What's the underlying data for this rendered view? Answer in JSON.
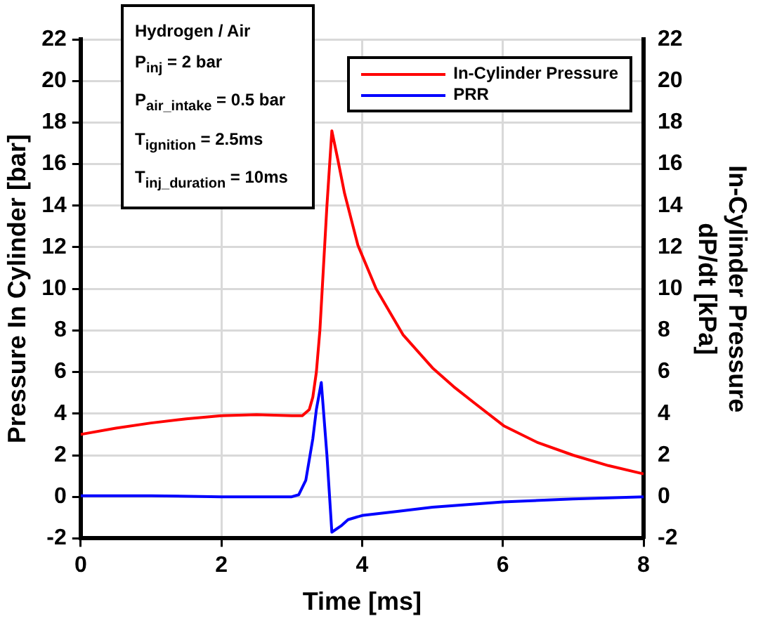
{
  "chart_data": {
    "type": "line",
    "xlabel": "Time [ms]",
    "ylabel": "Pressure In Cylinder [bar]",
    "y2label": "In-Cylinder Pressure\ndP/dt [kPa]",
    "annotations": [
      "Hydrogen / Air",
      "P$_{inj}$ = 2 bar",
      "P$_{air_intake}$ = 0.5 bar",
      "T$_{ignition}$ = 2.5ms",
      "T$_{inj_duration}$ = 10ms"
    ],
    "xlim": [
      0,
      8
    ],
    "xticks": [
      0,
      2,
      4,
      6,
      8
    ],
    "ylim": [
      -2,
      22
    ],
    "yticks": [
      -2,
      0,
      2,
      4,
      6,
      8,
      10,
      12,
      14,
      16,
      18,
      20,
      22
    ],
    "y2lim": [
      -2,
      22
    ],
    "y2ticks": [
      -2,
      0,
      2,
      4,
      6,
      8,
      10,
      12,
      14,
      16,
      18,
      20,
      22
    ],
    "grid": true,
    "legend": "top right",
    "marker": "none",
    "line_style": "solid",
    "series": [
      {
        "name": "In-Cylinder Pressure",
        "color": "#ff0000",
        "x": [
          0,
          0.5,
          1,
          1.5,
          2,
          2.5,
          3,
          3.15,
          3.25,
          3.3,
          3.35,
          3.4,
          3.45,
          3.5,
          3.57,
          3.65,
          3.75,
          3.94,
          4.2,
          4.58,
          5,
          5.3,
          5.6,
          6.02,
          6.5,
          7,
          7.5,
          8
        ],
        "values": [
          3.0,
          3.3,
          3.55,
          3.75,
          3.9,
          3.95,
          3.9,
          3.9,
          4.2,
          4.8,
          6.0,
          8.0,
          11.0,
          14.0,
          17.6,
          16.3,
          14.6,
          12.1,
          10.0,
          7.8,
          6.2,
          5.3,
          4.5,
          3.4,
          2.6,
          2.0,
          1.5,
          1.1
        ]
      },
      {
        "name": "PRR",
        "color": "#0000ff",
        "axis": "y2",
        "x": [
          0,
          1,
          2,
          2.5,
          3,
          3.1,
          3.2,
          3.3,
          3.35,
          3.42,
          3.5,
          3.57,
          3.7,
          3.8,
          4,
          4.5,
          5,
          6,
          7,
          8
        ],
        "values": [
          0.05,
          0.05,
          0.0,
          0.0,
          0.0,
          0.1,
          0.8,
          2.8,
          4.2,
          5.5,
          2.0,
          -1.7,
          -1.4,
          -1.1,
          -0.9,
          -0.7,
          -0.5,
          -0.25,
          -0.1,
          0.0
        ]
      }
    ]
  }
}
